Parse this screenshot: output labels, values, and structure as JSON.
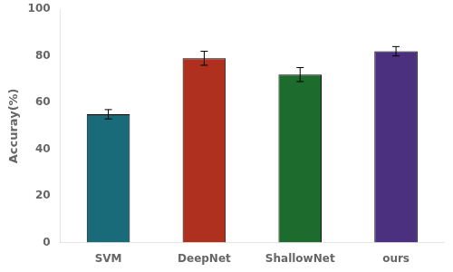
{
  "chart_data": {
    "type": "bar",
    "categories": [
      "SVM",
      "DeepNet",
      "ShallowNet",
      "ours"
    ],
    "values": [
      55.0,
      79.0,
      72.0,
      82.0
    ],
    "errors": [
      2.0,
      3.0,
      3.0,
      2.0
    ],
    "colors": [
      "#1a6b7a",
      "#b03020",
      "#1e6b2e",
      "#4b3080"
    ],
    "ylabel": "Accuray(%)",
    "ylim": [
      0,
      100
    ],
    "yticks": [
      0,
      20,
      40,
      60,
      80,
      100
    ],
    "grid": false
  }
}
